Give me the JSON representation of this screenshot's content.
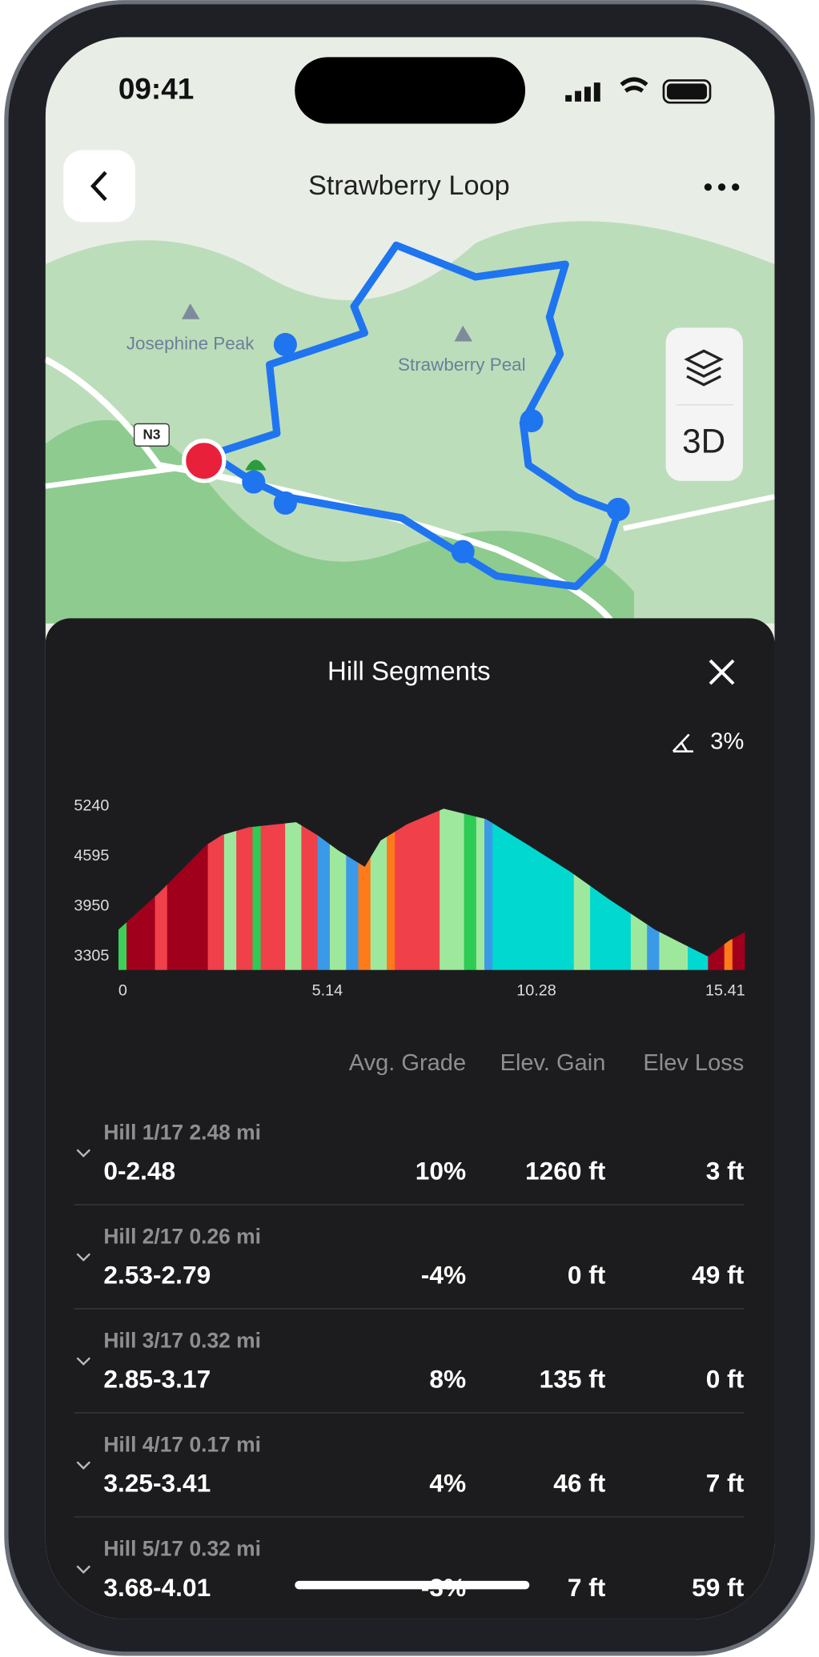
{
  "status_bar": {
    "time": "09:41"
  },
  "header": {
    "title": "Strawberry Loop",
    "layer_button": "3D"
  },
  "map": {
    "peaks": [
      "Josephine Peak",
      "Strawberry Peal"
    ],
    "road": "N3"
  },
  "sheet": {
    "title": "Hill Segments",
    "grade_threshold": "3%"
  },
  "profile": {
    "xlim": [
      0,
      15.41
    ],
    "ylim": [
      3130,
      5240
    ],
    "xticks": [
      0,
      5.14,
      10.28,
      15.41
    ],
    "yticks": [
      3305,
      3950,
      4595,
      5240
    ],
    "x": [
      0,
      0.99,
      2.16,
      2.55,
      3.2,
      4.37,
      4.89,
      5.41,
      6.06,
      6.45,
      7.1,
      8.0,
      9.04,
      10.08,
      11.12,
      12.03,
      13.2,
      13.72,
      14.5,
      15.02,
      15.41
    ],
    "elevation": [
      3650,
      4120,
      4740,
      4870,
      4970,
      5035,
      4870,
      4670,
      4460,
      4800,
      5010,
      5210,
      5075,
      4740,
      4395,
      4055,
      3650,
      3510,
      3305,
      3510,
      3620
    ],
    "segments": [
      {
        "start": 0,
        "end": 0.2,
        "color": "#3ecf5a"
      },
      {
        "start": 0.2,
        "end": 0.9,
        "color": "#a0001c"
      },
      {
        "start": 0.9,
        "end": 1.2,
        "color": "#f0404a"
      },
      {
        "start": 1.2,
        "end": 2.2,
        "color": "#a0001c"
      },
      {
        "start": 2.2,
        "end": 2.6,
        "color": "#f0404a"
      },
      {
        "start": 2.6,
        "end": 2.9,
        "color": "#9ee89e"
      },
      {
        "start": 2.9,
        "end": 3.3,
        "color": "#f0404a"
      },
      {
        "start": 3.3,
        "end": 3.5,
        "color": "#2ecc55"
      },
      {
        "start": 3.5,
        "end": 4.1,
        "color": "#f0404a"
      },
      {
        "start": 4.1,
        "end": 4.5,
        "color": "#9ee89e"
      },
      {
        "start": 4.5,
        "end": 4.9,
        "color": "#f0404a"
      },
      {
        "start": 4.9,
        "end": 5.2,
        "color": "#3b9ae8"
      },
      {
        "start": 5.2,
        "end": 5.6,
        "color": "#9ee89e"
      },
      {
        "start": 5.6,
        "end": 5.9,
        "color": "#3b9ae8"
      },
      {
        "start": 5.9,
        "end": 6.2,
        "color": "#ff7a1a"
      },
      {
        "start": 6.2,
        "end": 6.6,
        "color": "#9ee89e"
      },
      {
        "start": 6.6,
        "end": 6.8,
        "color": "#ff7a1a"
      },
      {
        "start": 6.8,
        "end": 7.9,
        "color": "#f0404a"
      },
      {
        "start": 7.9,
        "end": 8.5,
        "color": "#9ee89e"
      },
      {
        "start": 8.5,
        "end": 8.8,
        "color": "#2ecc55"
      },
      {
        "start": 8.8,
        "end": 9.0,
        "color": "#9ee89e"
      },
      {
        "start": 9.0,
        "end": 9.2,
        "color": "#3b9ae8"
      },
      {
        "start": 9.2,
        "end": 11.2,
        "color": "#00d8d0"
      },
      {
        "start": 11.2,
        "end": 11.6,
        "color": "#9ee89e"
      },
      {
        "start": 11.6,
        "end": 12.6,
        "color": "#00d8d0"
      },
      {
        "start": 12.6,
        "end": 13.0,
        "color": "#9ee89e"
      },
      {
        "start": 13.0,
        "end": 13.3,
        "color": "#3b9ae8"
      },
      {
        "start": 13.3,
        "end": 14.0,
        "color": "#9ee89e"
      },
      {
        "start": 14.0,
        "end": 14.5,
        "color": "#00d8d0"
      },
      {
        "start": 14.5,
        "end": 14.9,
        "color": "#a0001c"
      },
      {
        "start": 14.9,
        "end": 15.1,
        "color": "#ff7a1a"
      },
      {
        "start": 15.1,
        "end": 15.41,
        "color": "#a0001c"
      }
    ]
  },
  "table": {
    "columns": [
      "Avg. Grade",
      "Elev. Gain",
      "Elev Loss"
    ],
    "rows": [
      {
        "hill": "Hill 1/17 2.48 mi",
        "range": "0-2.48",
        "grade": "10%",
        "gain": "1260 ft",
        "loss": "3 ft"
      },
      {
        "hill": "Hill 2/17 0.26 mi",
        "range": "2.53-2.79",
        "grade": "-4%",
        "gain": "0 ft",
        "loss": "49 ft"
      },
      {
        "hill": "Hill 3/17 0.32 mi",
        "range": "2.85-3.17",
        "grade": "8%",
        "gain": "135 ft",
        "loss": "0 ft"
      },
      {
        "hill": "Hill 4/17 0.17 mi",
        "range": "3.25-3.41",
        "grade": "4%",
        "gain": "46 ft",
        "loss": "7 ft"
      },
      {
        "hill": "Hill 5/17 0.32 mi",
        "range": "3.68-4.01",
        "grade": "-3%",
        "gain": "7 ft",
        "loss": "59 ft"
      }
    ]
  }
}
